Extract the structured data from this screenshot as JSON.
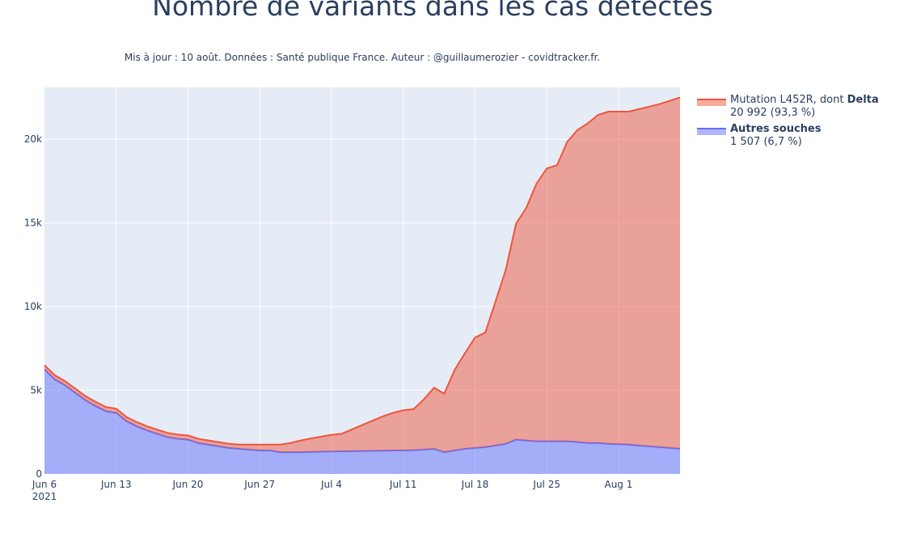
{
  "chart_data": {
    "type": "area",
    "stacked": true,
    "title": "Nombre de variants dans les cas détectés",
    "subtitle": "Mis à jour : 10 août. Données : Santé publique France. Auteur : @guillaumerozier - covidtracker.fr.",
    "x_tick_labels": [
      "Jun 6",
      "Jun 13",
      "Jun 20",
      "Jun 27",
      "Jul 4",
      "Jul 11",
      "Jul 18",
      "Jul 25",
      "Aug 1"
    ],
    "x_tick_sublabel": "2021",
    "x_range": [
      "2021-06-06",
      "2021-08-07"
    ],
    "y_tick_labels": [
      "0",
      "5k",
      "10k",
      "15k",
      "20k"
    ],
    "y_ticks": [
      0,
      5000,
      10000,
      15000,
      20000
    ],
    "ylim": [
      0,
      23100
    ],
    "grid": true,
    "legend_position": "right",
    "x": [
      "2021-06-06",
      "2021-06-07",
      "2021-06-08",
      "2021-06-09",
      "2021-06-10",
      "2021-06-11",
      "2021-06-12",
      "2021-06-13",
      "2021-06-14",
      "2021-06-15",
      "2021-06-16",
      "2021-06-17",
      "2021-06-18",
      "2021-06-19",
      "2021-06-20",
      "2021-06-21",
      "2021-06-22",
      "2021-06-23",
      "2021-06-24",
      "2021-06-25",
      "2021-06-26",
      "2021-06-27",
      "2021-06-28",
      "2021-06-29",
      "2021-06-30",
      "2021-07-01",
      "2021-07-02",
      "2021-07-03",
      "2021-07-04",
      "2021-07-05",
      "2021-07-06",
      "2021-07-07",
      "2021-07-08",
      "2021-07-09",
      "2021-07-10",
      "2021-07-11",
      "2021-07-12",
      "2021-07-13",
      "2021-07-14",
      "2021-07-15",
      "2021-07-16",
      "2021-07-17",
      "2021-07-18",
      "2021-07-19",
      "2021-07-20",
      "2021-07-21",
      "2021-07-22",
      "2021-07-23",
      "2021-07-24",
      "2021-07-25",
      "2021-07-26",
      "2021-07-27",
      "2021-07-28",
      "2021-07-29",
      "2021-07-30",
      "2021-07-31",
      "2021-08-01",
      "2021-08-02",
      "2021-08-03",
      "2021-08-04",
      "2021-08-05",
      "2021-08-06",
      "2021-08-07"
    ],
    "series": [
      {
        "name": "Autres souches",
        "legend_value": "1 507 (6,7 %)",
        "color": "#636efa",
        "fill": "rgba(99,110,250,0.5)",
        "values": [
          6250,
          5650,
          5300,
          4850,
          4400,
          4050,
          3750,
          3650,
          3150,
          2850,
          2600,
          2400,
          2200,
          2100,
          2050,
          1850,
          1750,
          1650,
          1550,
          1500,
          1450,
          1400,
          1400,
          1300,
          1300,
          1300,
          1320,
          1330,
          1340,
          1350,
          1360,
          1370,
          1380,
          1390,
          1400,
          1400,
          1420,
          1450,
          1500,
          1300,
          1400,
          1500,
          1550,
          1600,
          1700,
          1800,
          2050,
          2000,
          1950,
          1950,
          1950,
          1950,
          1900,
          1850,
          1850,
          1800,
          1780,
          1750,
          1700,
          1650,
          1600,
          1550,
          1507
        ]
      },
      {
        "name": "Mutation L452R, dont Delta",
        "legend_prefix": "Mutation L452R, dont ",
        "legend_bold": "Delta",
        "legend_value": "20 992 (93,3 %)",
        "color": "#ef553b",
        "fill": "rgba(239,85,59,0.5)",
        "values": [
          250,
          250,
          250,
          250,
          250,
          250,
          250,
          250,
          250,
          250,
          250,
          250,
          250,
          250,
          250,
          250,
          250,
          250,
          250,
          250,
          300,
          350,
          350,
          450,
          550,
          700,
          800,
          900,
          1000,
          1050,
          1300,
          1550,
          1800,
          2050,
          2250,
          2400,
          2450,
          3000,
          3650,
          3500,
          4800,
          5700,
          6600,
          6850,
          8600,
          10400,
          12900,
          13900,
          15400,
          16300,
          16500,
          17900,
          18650,
          19100,
          19600,
          19850,
          19870,
          19900,
          20100,
          20300,
          20500,
          20750,
          20992
        ]
      }
    ]
  }
}
